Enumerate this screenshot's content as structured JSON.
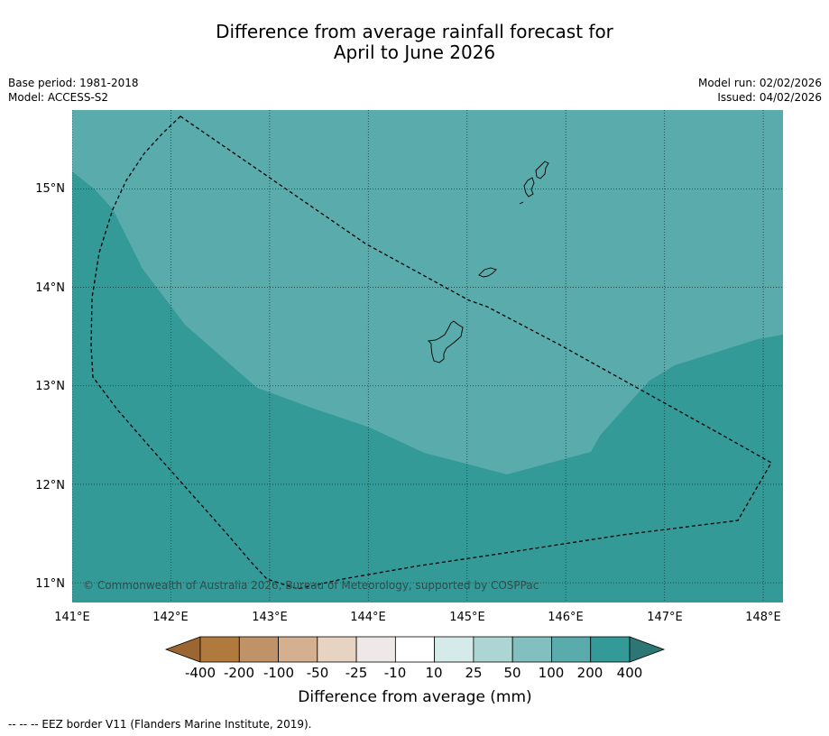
{
  "title": {
    "line1": "Difference from average rainfall forecast for",
    "line2": "April to June 2026"
  },
  "meta": {
    "base_period": "Base period: 1981-2018",
    "model": "Model: ACCESS-S2",
    "model_run": "Model run: 02/02/2026",
    "issued": "Issued: 04/02/2026"
  },
  "map": {
    "lon_ticks": [
      "141°E",
      "142°E",
      "143°E",
      "144°E",
      "145°E",
      "146°E",
      "147°E",
      "148°E"
    ],
    "lat_ticks": [
      "15°N",
      "14°N",
      "13°N",
      "12°N",
      "11°N"
    ],
    "lon_range": [
      141,
      148.2
    ],
    "lat_range": [
      10.8,
      15.8
    ],
    "copyright": "© Commonwealth of Australia 2026, Bureau of Meteorology, supported by COSPPac",
    "zones": [
      {
        "name": "100 to 200 mm",
        "color": "#5aabab"
      },
      {
        "name": "200 to 400 mm",
        "color": "#339a98"
      }
    ],
    "eez_line_color": "#000000",
    "coast_color": "#000000"
  },
  "colorbar": {
    "title": "Difference from average (mm)",
    "labels": [
      "-400",
      "-200",
      "-100",
      "-50",
      "-25",
      "-10",
      "10",
      "25",
      "50",
      "100",
      "200",
      "400"
    ],
    "colors": [
      "#b07a3e",
      "#c09268",
      "#d4b090",
      "#e7d3c1",
      "#eee9e6",
      "#ffffff",
      "#d5ebea",
      "#acd5d4",
      "#81c0bf",
      "#5aabab",
      "#339a98"
    ],
    "under_color": "#9c6632",
    "over_color": "#2c7775"
  },
  "footnote": "--  --  -- EEZ border V11 (Flanders Marine Institute, 2019)."
}
